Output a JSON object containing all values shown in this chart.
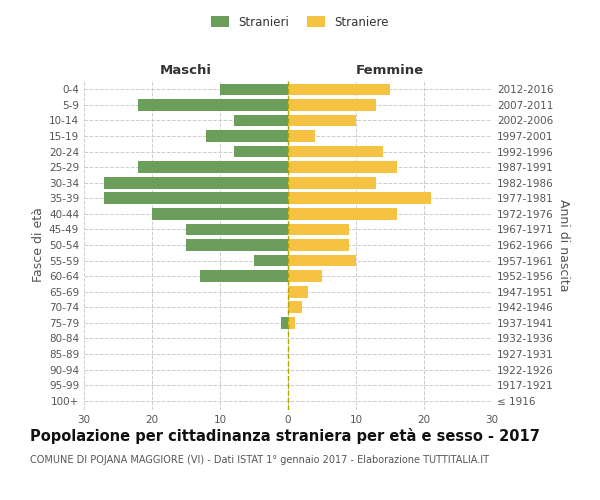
{
  "age_groups": [
    "100+",
    "95-99",
    "90-94",
    "85-89",
    "80-84",
    "75-79",
    "70-74",
    "65-69",
    "60-64",
    "55-59",
    "50-54",
    "45-49",
    "40-44",
    "35-39",
    "30-34",
    "25-29",
    "20-24",
    "15-19",
    "10-14",
    "5-9",
    "0-4"
  ],
  "birth_years": [
    "≤ 1916",
    "1917-1921",
    "1922-1926",
    "1927-1931",
    "1932-1936",
    "1937-1941",
    "1942-1946",
    "1947-1951",
    "1952-1956",
    "1957-1961",
    "1962-1966",
    "1967-1971",
    "1972-1976",
    "1977-1981",
    "1982-1986",
    "1987-1991",
    "1992-1996",
    "1997-2001",
    "2002-2006",
    "2007-2011",
    "2012-2016"
  ],
  "males": [
    0,
    0,
    0,
    0,
    0,
    1,
    0,
    0,
    13,
    5,
    15,
    15,
    20,
    27,
    27,
    22,
    8,
    12,
    8,
    22,
    10
  ],
  "females": [
    0,
    0,
    0,
    0,
    0,
    1,
    2,
    3,
    5,
    10,
    9,
    9,
    16,
    21,
    13,
    16,
    14,
    4,
    10,
    13,
    15
  ],
  "male_color": "#6a9e5a",
  "female_color": "#f5c242",
  "grid_color": "#cccccc",
  "bar_height": 0.75,
  "xlim": 30,
  "title": "Popolazione per cittadinanza straniera per età e sesso - 2017",
  "subtitle": "COMUNE DI POJANA MAGGIORE (VI) - Dati ISTAT 1° gennaio 2017 - Elaborazione TUTTITALIA.IT",
  "ylabel_left": "Fasce di età",
  "ylabel_right": "Anni di nascita",
  "xlabel_left": "Maschi",
  "xlabel_right": "Femmine",
  "legend_males": "Stranieri",
  "legend_females": "Straniere",
  "title_fontsize": 10.5,
  "subtitle_fontsize": 7,
  "tick_fontsize": 7.5,
  "label_fontsize": 9,
  "header_fontsize": 9.5
}
